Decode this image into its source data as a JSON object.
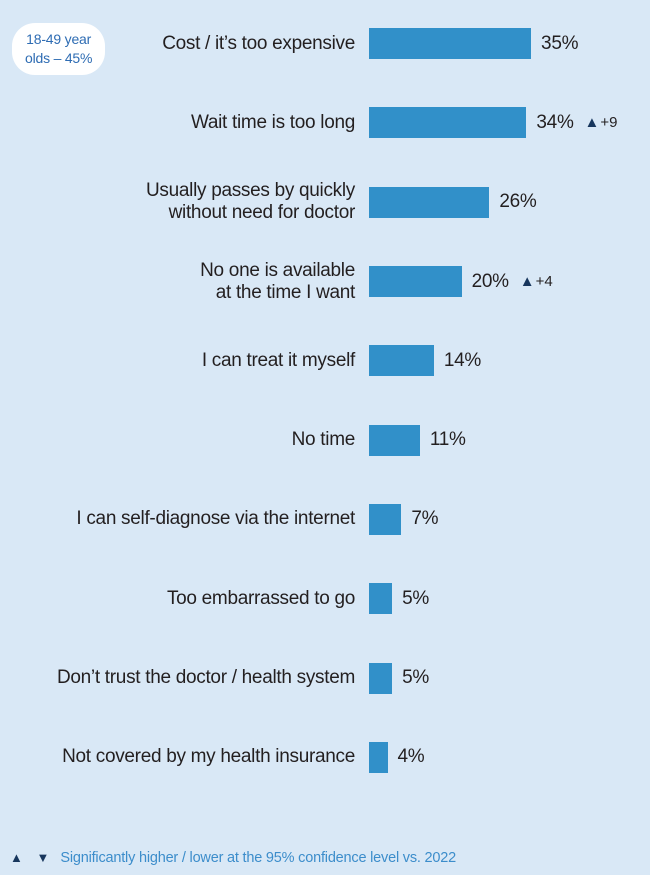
{
  "colors": {
    "background": "#d9e8f6",
    "bar": "#3190c9",
    "text": "#231f20",
    "significance_triangle": "#17365d",
    "callout_text": "#2e6cb3",
    "callout_background": "#ffffff",
    "footnote_text": "#3c8dcb"
  },
  "callout": {
    "text": "18-49 year\nolds –  45%"
  },
  "chart_data": {
    "type": "bar",
    "orientation": "horizontal",
    "title": "",
    "xlabel": "",
    "ylabel": "",
    "categories": [
      "Cost / it’s too expensive",
      "Wait time is too long",
      "Usually passes by quickly without need for doctor",
      "No one is available at the time I want",
      "I can treat it myself",
      "No time",
      "I can self-diagnose via the internet",
      "Too embarrassed to go",
      "Don’t trust the doctor / health system",
      "Not covered by my health insurance"
    ],
    "values": [
      35,
      34,
      26,
      20,
      14,
      11,
      7,
      5,
      5,
      4
    ],
    "value_labels": [
      "35%",
      "34%",
      "26%",
      "20%",
      "14%",
      "11%",
      "7%",
      "5%",
      "5%",
      "4%"
    ],
    "annotations": [
      {
        "category": "Wait time is too long",
        "marker": "▲",
        "change": "+9"
      },
      {
        "category": "No one is available at the time I want",
        "marker": "▲",
        "change": "+4"
      }
    ],
    "xlim": [
      0,
      40
    ],
    "grid": false,
    "legend": false,
    "bar_color": "#3190c9",
    "background_color": "#d9e8f6"
  },
  "chart_rows": [
    {
      "label": "Cost / it’s too expensive",
      "value": 35,
      "value_label": "35%"
    },
    {
      "label": "Wait time is too long",
      "value": 34,
      "value_label": "34%",
      "marker": "▲",
      "change": "+9"
    },
    {
      "label": "Usually passes by quickly\nwithout need for doctor",
      "value": 26,
      "value_label": "26%"
    },
    {
      "label": "No one is available\nat the time I want",
      "value": 20,
      "value_label": "20%",
      "marker": "▲",
      "change": "+4"
    },
    {
      "label": "I can treat it myself",
      "value": 14,
      "value_label": "14%"
    },
    {
      "label": "No time",
      "value": 11,
      "value_label": "11%"
    },
    {
      "label": "I can self-diagnose via the internet",
      "value": 7,
      "value_label": "7%"
    },
    {
      "label": "Too embarrassed to go",
      "value": 5,
      "value_label": "5%"
    },
    {
      "label": "Don’t trust the doctor / health system",
      "value": 5,
      "value_label": "5%"
    },
    {
      "label": "Not covered by my health insurance",
      "value": 4,
      "value_label": "4%"
    }
  ],
  "footnote": {
    "markers": "▲ ▼",
    "text": "Significantly higher / lower at the 95% confidence level vs. 2022"
  }
}
